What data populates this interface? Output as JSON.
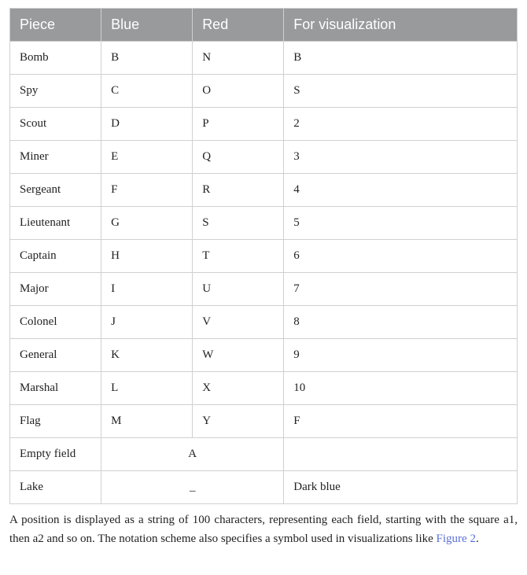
{
  "table": {
    "columns": [
      "Piece",
      "Blue",
      "Red",
      "For visualization"
    ],
    "header_bg": "#999a9c",
    "header_fg": "#ffffff",
    "border_color": "#d0d0d0",
    "column_widths_pct": [
      18,
      18,
      18,
      46
    ],
    "rows": [
      {
        "piece": "Bomb",
        "blue": "B",
        "red": "N",
        "viz": "B"
      },
      {
        "piece": "Spy",
        "blue": "C",
        "red": "O",
        "viz": "S"
      },
      {
        "piece": "Scout",
        "blue": "D",
        "red": "P",
        "viz": "2"
      },
      {
        "piece": "Miner",
        "blue": "E",
        "red": "Q",
        "viz": "3"
      },
      {
        "piece": "Sergeant",
        "blue": "F",
        "red": "R",
        "viz": "4"
      },
      {
        "piece": "Lieutenant",
        "blue": "G",
        "red": "S",
        "viz": "5"
      },
      {
        "piece": "Captain",
        "blue": "H",
        "red": "T",
        "viz": "6"
      },
      {
        "piece": "Major",
        "blue": "I",
        "red": "U",
        "viz": "7"
      },
      {
        "piece": "Colonel",
        "blue": "J",
        "red": "V",
        "viz": "8"
      },
      {
        "piece": "General",
        "blue": "K",
        "red": "W",
        "viz": "9"
      },
      {
        "piece": "Marshal",
        "blue": "L",
        "red": "X",
        "viz": "10"
      },
      {
        "piece": "Flag",
        "blue": "M",
        "red": "Y",
        "viz": "F"
      }
    ],
    "merged_rows": [
      {
        "piece": "Empty field",
        "merged": "A",
        "viz": ""
      },
      {
        "piece": "Lake",
        "merged": "_",
        "viz": "Dark blue"
      }
    ]
  },
  "caption": {
    "pre": "A position is displayed as a string of 100 characters, representing each field, starting with the square a1, then a2 and so on. The notation scheme also specifies a symbol used in visualizations like ",
    "link": "Figure 2",
    "post": ".",
    "link_color": "#5b6fd6"
  }
}
